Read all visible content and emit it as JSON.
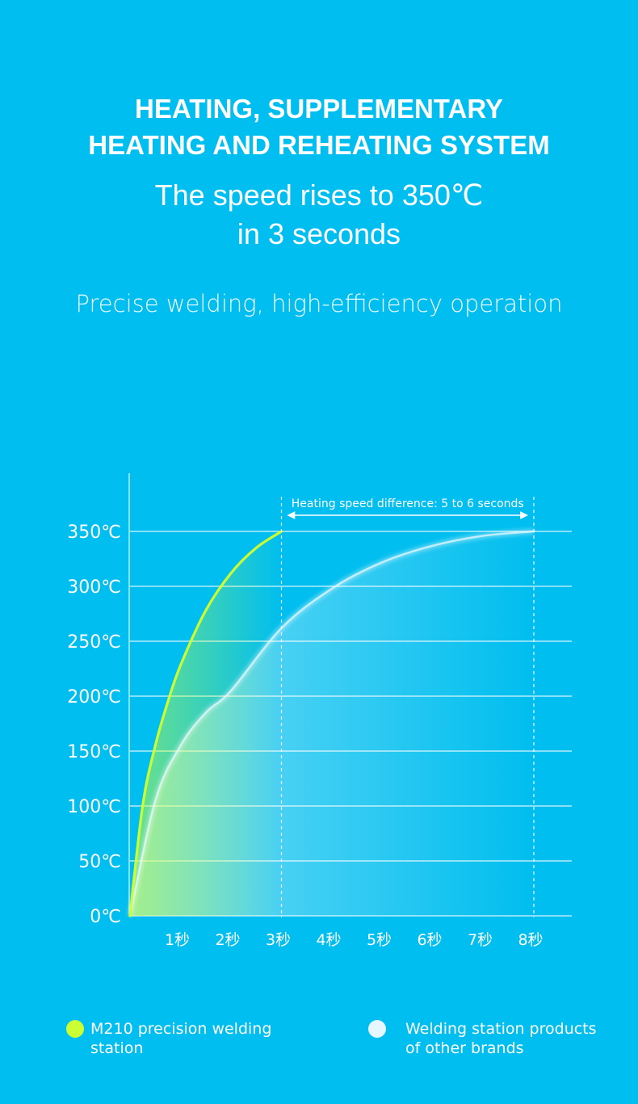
{
  "header": {
    "title_line1": "HEATING, SUPPLEMENTARY",
    "title_line2": "HEATING AND REHEATING SYSTEM",
    "subtitle_line1": "The speed rises to 350℃",
    "subtitle_line2": "in 3 seconds",
    "tagline": "Precise welding, high-efficiency operation"
  },
  "colors": {
    "background": "#00BEEF",
    "m210_curve": "#CCFF33",
    "other_curve": "#E6F7FF",
    "grid": "#FFFFFF"
  },
  "chart_data": {
    "type": "line",
    "title": "",
    "xlabel": "",
    "ylabel": "",
    "xlim": [
      0,
      8
    ],
    "ylim": [
      0,
      350
    ],
    "x_ticks": [
      "1秒",
      "2秒",
      "3秒",
      "4秒",
      "5秒",
      "6秒",
      "7秒",
      "8秒"
    ],
    "y_ticks": [
      "0℃",
      "50℃",
      "100℃",
      "150℃",
      "200℃",
      "250℃",
      "300℃",
      "350℃"
    ],
    "grid": true,
    "legend_position": "bottom",
    "annotation": {
      "text": "Heating speed difference: 5 to 6 seconds",
      "from_x": 3,
      "to_x": 8,
      "y": 350
    },
    "series": [
      {
        "name": "M210 precision welding station",
        "color": "#CCFF33",
        "x": [
          0,
          0.25,
          0.5,
          0.75,
          1,
          1.5,
          2,
          2.5,
          3
        ],
        "y": [
          0,
          100,
          155,
          195,
          228,
          278,
          312,
          335,
          350
        ]
      },
      {
        "name": "Welding station products of other brands",
        "line1": "Welding station products",
        "line2": "of other brands",
        "color": "#E6F7FF",
        "x": [
          0,
          0.5,
          1,
          1.5,
          2,
          3,
          4,
          5,
          6,
          7,
          8
        ],
        "y": [
          0,
          105,
          155,
          185,
          205,
          262,
          298,
          322,
          337,
          346,
          350
        ]
      }
    ]
  }
}
